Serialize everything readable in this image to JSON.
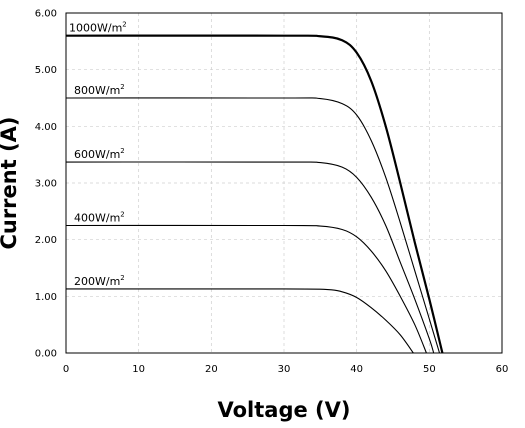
{
  "chart_data": {
    "type": "line",
    "xlabel": "Voltage (V)",
    "ylabel": "Current (A)",
    "xlim": [
      0,
      60
    ],
    "ylim": [
      0,
      6
    ],
    "x_ticks": [
      "0",
      "10",
      "20",
      "30",
      "40",
      "50",
      "60"
    ],
    "y_ticks": [
      "0.00",
      "1.00",
      "2.00",
      "3.00",
      "4.00",
      "5.00",
      "6.00"
    ],
    "grid": true,
    "series": [
      {
        "name": "1000W/m2",
        "label_main": "1000W/m",
        "label_sup": "2",
        "isc": 5.6,
        "voc": 51.8,
        "knee": 35,
        "bold": true,
        "points": [
          [
            0,
            5.6
          ],
          [
            30,
            5.6
          ],
          [
            35,
            5.59
          ],
          [
            38,
            5.52
          ],
          [
            40,
            5.3
          ],
          [
            42,
            4.8
          ],
          [
            44,
            4.0
          ],
          [
            46,
            3.0
          ],
          [
            48,
            1.95
          ],
          [
            50,
            0.95
          ],
          [
            51.8,
            0
          ]
        ]
      },
      {
        "name": "800W/m2",
        "label_main": "800W/m",
        "label_sup": "2",
        "isc": 4.5,
        "voc": 51.4,
        "knee": 35,
        "bold": false,
        "points": [
          [
            0,
            4.5
          ],
          [
            30,
            4.5
          ],
          [
            35,
            4.49
          ],
          [
            38,
            4.4
          ],
          [
            40,
            4.2
          ],
          [
            42,
            3.75
          ],
          [
            44,
            3.1
          ],
          [
            46,
            2.3
          ],
          [
            48,
            1.45
          ],
          [
            50,
            0.6
          ],
          [
            51.4,
            0
          ]
        ]
      },
      {
        "name": "600W/m2",
        "label_main": "600W/m",
        "label_sup": "2",
        "isc": 3.37,
        "voc": 50.6,
        "knee": 35,
        "bold": false,
        "points": [
          [
            0,
            3.37
          ],
          [
            30,
            3.37
          ],
          [
            35,
            3.36
          ],
          [
            38,
            3.28
          ],
          [
            40,
            3.1
          ],
          [
            42,
            2.75
          ],
          [
            44,
            2.25
          ],
          [
            46,
            1.6
          ],
          [
            48,
            0.95
          ],
          [
            50,
            0.25
          ],
          [
            50.6,
            0
          ]
        ]
      },
      {
        "name": "400W/m2",
        "label_main": "400W/m",
        "label_sup": "2",
        "isc": 2.25,
        "voc": 49.6,
        "knee": 35,
        "bold": false,
        "points": [
          [
            0,
            2.25
          ],
          [
            30,
            2.25
          ],
          [
            35,
            2.24
          ],
          [
            38,
            2.18
          ],
          [
            40,
            2.05
          ],
          [
            42,
            1.8
          ],
          [
            44,
            1.45
          ],
          [
            46,
            1.0
          ],
          [
            48,
            0.5
          ],
          [
            49.6,
            0
          ]
        ]
      },
      {
        "name": "200W/m2",
        "label_main": "200W/m",
        "label_sup": "2",
        "isc": 1.13,
        "voc": 47.8,
        "knee": 35,
        "bold": false,
        "points": [
          [
            0,
            1.13
          ],
          [
            30,
            1.13
          ],
          [
            36,
            1.12
          ],
          [
            38,
            1.08
          ],
          [
            40,
            0.98
          ],
          [
            42,
            0.8
          ],
          [
            44,
            0.58
          ],
          [
            46,
            0.32
          ],
          [
            47.8,
            0
          ]
        ]
      }
    ]
  }
}
